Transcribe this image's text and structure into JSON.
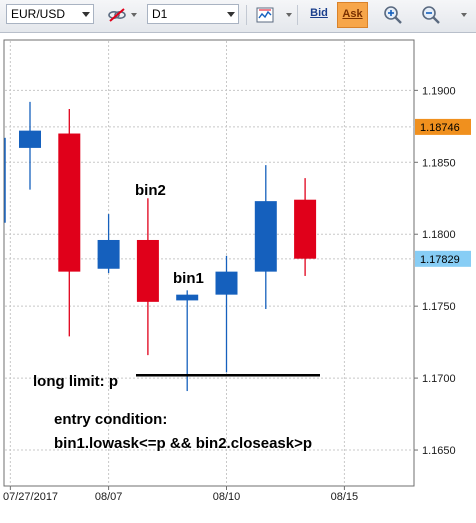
{
  "toolbar": {
    "symbol": "EUR/USD",
    "timeframe": "D1",
    "bid_label": "Bid",
    "ask_label": "Ask",
    "ask_active_color": "#f7a64a"
  },
  "annotations": {
    "bin2": "bin2",
    "bin1": "bin1",
    "long_limit": "long limit: p",
    "entry_line1": "entry condition:",
    "entry_line2": "bin1.lowask<=p && bin2.closeask>p"
  },
  "price_tags": {
    "upper": {
      "value": 1.18746,
      "label": "1.18746",
      "color": "#f0901e"
    },
    "lower": {
      "value": 1.17829,
      "label": "1.17829",
      "color": "#87cdf5"
    }
  },
  "chart_data": {
    "type": "candlestick",
    "symbol": "EUR/USD",
    "timeframe": "D1",
    "ylim": [
      1.1625,
      1.1935
    ],
    "y_ticks": [
      1.19,
      1.185,
      1.18,
      1.175,
      1.17,
      1.165
    ],
    "y_tick_labels": [
      "1.1900",
      "1.1850",
      "1.1800",
      "1.1750",
      "1.1700",
      "1.1650"
    ],
    "x_tick_labels": [
      {
        "label": "07/27/2017",
        "slot": -0.5
      },
      {
        "label": "08/07",
        "slot": 2
      },
      {
        "label": "08/10",
        "slot": 5
      },
      {
        "label": "08/15",
        "slot": 8
      }
    ],
    "up_color": "#1560bd",
    "down_color": "#e0001a",
    "candles": [
      {
        "open": 1.186,
        "high": 1.1892,
        "low": 1.1831,
        "close": 1.1872
      },
      {
        "open": 1.187,
        "high": 1.1887,
        "low": 1.1729,
        "close": 1.1774
      },
      {
        "open": 1.1776,
        "high": 1.1814,
        "low": 1.1773,
        "close": 1.1796
      },
      {
        "open": 1.1796,
        "high": 1.1825,
        "low": 1.1716,
        "close": 1.1753
      },
      {
        "open": 1.1754,
        "high": 1.1761,
        "low": 1.1691,
        "close": 1.1758
      },
      {
        "open": 1.1758,
        "high": 1.1785,
        "low": 1.1704,
        "close": 1.1774
      },
      {
        "open": 1.1774,
        "high": 1.1848,
        "low": 1.1748,
        "close": 1.1823
      },
      {
        "open": 1.1824,
        "high": 1.1839,
        "low": 1.1771,
        "close": 1.1783
      }
    ],
    "limit_price": 1.1702
  }
}
